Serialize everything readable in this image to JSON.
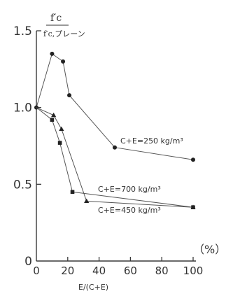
{
  "chart_data": {
    "type": "line",
    "y_label_top": "f′c",
    "y_label_bottom": "f′c,プレーン",
    "xlabel": "E/(C+E)",
    "x_unit": "（%）",
    "xlim": [
      0,
      100
    ],
    "ylim": [
      0,
      1.5
    ],
    "x_ticks": [
      "0",
      "20",
      "40",
      "60",
      "80",
      "100"
    ],
    "y_ticks": [
      "0",
      "0.5",
      "1.0",
      "1.5"
    ],
    "series": [
      {
        "name": "C+E=250 kg/m³",
        "marker": "circle",
        "x": [
          0,
          10,
          17,
          21,
          50,
          100
        ],
        "y": [
          1.0,
          1.35,
          1.3,
          1.08,
          0.74,
          0.66
        ]
      },
      {
        "name": "C+E=700 kg/m³",
        "marker": "square",
        "x": [
          0,
          10,
          15,
          23,
          100
        ],
        "y": [
          1.0,
          0.92,
          0.77,
          0.45,
          0.35
        ]
      },
      {
        "name": "C+E=450 kg/m³",
        "marker": "triangle",
        "x": [
          0,
          11,
          16,
          32,
          100
        ],
        "y": [
          1.0,
          0.95,
          0.86,
          0.39,
          0.35
        ]
      }
    ],
    "grid": false,
    "legend": "inline labels"
  }
}
